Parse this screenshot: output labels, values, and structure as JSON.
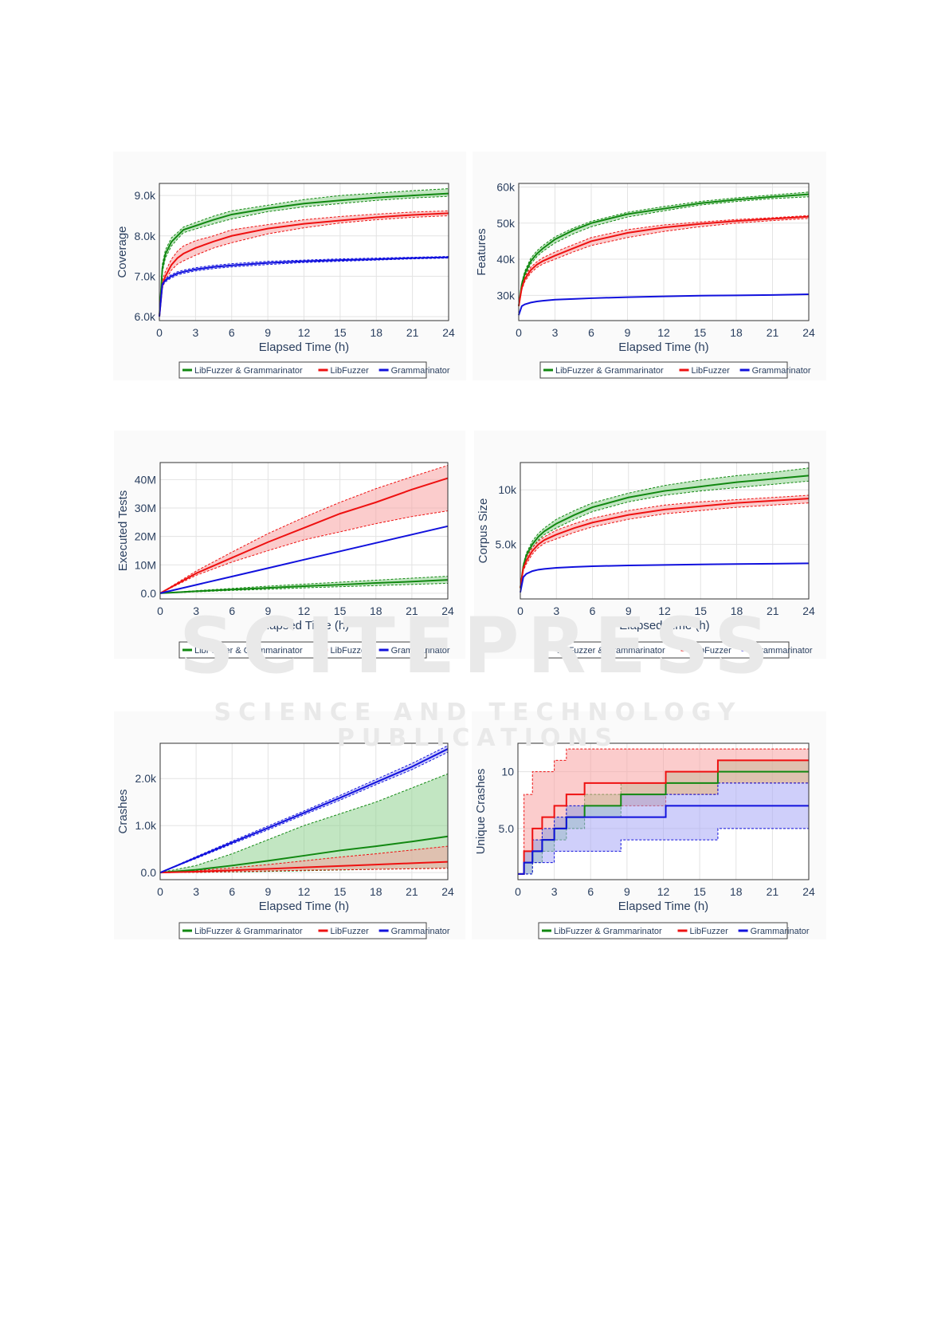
{
  "watermark": {
    "main": "SCITEPRESS",
    "sub": "SCIENCE AND TECHNOLOGY PUBLICATIONS"
  },
  "colors": {
    "green": "#118811",
    "red": "#ee1111",
    "blue": "#1111dd",
    "green_fill": "#8fd18f",
    "red_fill": "#f7a3a3",
    "blue_fill": "#a8a8f5"
  },
  "legend": [
    "LibFuzzer & Grammarinator",
    "LibFuzzer",
    "Grammarinator"
  ],
  "chart_data": [
    {
      "type": "line",
      "xlabel": "Elapsed Time (h)",
      "ylabel": "Coverage",
      "xlim": [
        0,
        24
      ],
      "ylim": [
        5900,
        9300
      ],
      "xticks": [
        0,
        3,
        6,
        9,
        12,
        15,
        18,
        21,
        24
      ],
      "yticks": [
        {
          "v": 6000,
          "l": "6.0k"
        },
        {
          "v": 7000,
          "l": "7.0k"
        },
        {
          "v": 8000,
          "l": "8.0k"
        },
        {
          "v": 9000,
          "l": "9.0k"
        }
      ],
      "grid": true,
      "legend_placement": "bottom",
      "x": [
        0,
        0.25,
        0.5,
        1,
        1.5,
        2,
        3,
        4.5,
        6,
        9,
        12,
        15,
        18,
        21,
        24
      ],
      "series": [
        {
          "name": "LibFuzzer & Grammarinator",
          "color": "green",
          "values": [
            6000,
            7200,
            7550,
            7850,
            8000,
            8150,
            8250,
            8400,
            8530,
            8680,
            8800,
            8880,
            8950,
            9000,
            9050
          ],
          "upper": [
            6000,
            7300,
            7650,
            7950,
            8080,
            8220,
            8330,
            8490,
            8620,
            8760,
            8900,
            9000,
            9060,
            9120,
            9170
          ],
          "lower": [
            6000,
            7100,
            7450,
            7750,
            7920,
            8080,
            8170,
            8300,
            8420,
            8600,
            8720,
            8800,
            8880,
            8940,
            8980
          ]
        },
        {
          "name": "LibFuzzer",
          "color": "red",
          "values": [
            6000,
            6800,
            7000,
            7280,
            7450,
            7560,
            7700,
            7860,
            8000,
            8180,
            8300,
            8380,
            8460,
            8520,
            8560
          ],
          "upper": [
            6000,
            6900,
            7120,
            7420,
            7620,
            7750,
            7880,
            8000,
            8150,
            8280,
            8400,
            8480,
            8540,
            8590,
            8620
          ],
          "lower": [
            6000,
            6700,
            6900,
            7150,
            7300,
            7380,
            7520,
            7700,
            7830,
            8050,
            8200,
            8320,
            8400,
            8460,
            8500
          ]
        },
        {
          "name": "Grammarinator",
          "color": "blue",
          "values": [
            6000,
            6800,
            6900,
            7000,
            7070,
            7110,
            7170,
            7230,
            7270,
            7330,
            7370,
            7400,
            7420,
            7450,
            7470
          ],
          "upper": [
            6000,
            6830,
            6940,
            7040,
            7110,
            7150,
            7210,
            7270,
            7310,
            7370,
            7400,
            7430,
            7450,
            7470,
            7490
          ],
          "lower": [
            6000,
            6770,
            6860,
            6960,
            7030,
            7070,
            7130,
            7190,
            7230,
            7290,
            7340,
            7370,
            7400,
            7430,
            7450
          ]
        }
      ]
    },
    {
      "type": "line",
      "xlabel": "Elapsed Time (h)",
      "ylabel": "Features",
      "xlim": [
        0,
        24
      ],
      "ylim": [
        23000,
        61000
      ],
      "xticks": [
        0,
        3,
        6,
        9,
        12,
        15,
        18,
        21,
        24
      ],
      "yticks": [
        {
          "v": 30000,
          "l": "30k"
        },
        {
          "v": 40000,
          "l": "40k"
        },
        {
          "v": 50000,
          "l": "50k"
        },
        {
          "v": 60000,
          "l": "60k"
        }
      ],
      "grid": true,
      "legend_placement": "bottom",
      "x": [
        0,
        0.25,
        0.5,
        1,
        1.5,
        2,
        3,
        4.5,
        6,
        9,
        12,
        15,
        18,
        21,
        24
      ],
      "series": [
        {
          "name": "LibFuzzer & Grammarinator",
          "color": "green",
          "values": [
            27000,
            33000,
            36000,
            39500,
            41500,
            43000,
            45500,
            48000,
            50000,
            52500,
            54000,
            55500,
            56500,
            57300,
            58000
          ],
          "upper": [
            27000,
            33500,
            36700,
            40300,
            42300,
            43800,
            46200,
            48600,
            50500,
            53000,
            54600,
            56000,
            57000,
            57800,
            58600
          ],
          "lower": [
            27000,
            32500,
            35300,
            38700,
            40700,
            42200,
            44500,
            47000,
            49000,
            51700,
            53400,
            55000,
            56000,
            56800,
            57300
          ]
        },
        {
          "name": "LibFuzzer",
          "color": "red",
          "values": [
            27000,
            32000,
            34500,
            37000,
            38500,
            39500,
            41000,
            43000,
            45000,
            47300,
            48800,
            49800,
            50600,
            51200,
            51800
          ],
          "upper": [
            27000,
            32500,
            35200,
            37800,
            39300,
            40400,
            42000,
            44000,
            46000,
            48200,
            49500,
            50300,
            51000,
            51500,
            52100
          ],
          "lower": [
            27000,
            31500,
            33800,
            36200,
            37700,
            38700,
            40000,
            42000,
            43800,
            46000,
            47700,
            49000,
            50000,
            50700,
            51300
          ]
        },
        {
          "name": "Grammarinator",
          "color": "blue",
          "values": [
            24500,
            27000,
            27500,
            28000,
            28300,
            28500,
            28800,
            29000,
            29200,
            29500,
            29700,
            29900,
            30000,
            30100,
            30300
          ]
        }
      ]
    },
    {
      "type": "line",
      "xlabel": "Elapsed Time (h)",
      "ylabel": "Executed Tests",
      "xlim": [
        0,
        24
      ],
      "ylim": [
        -2000000,
        46000000
      ],
      "xticks": [
        0,
        3,
        6,
        9,
        12,
        15,
        18,
        21,
        24
      ],
      "yticks": [
        {
          "v": 0,
          "l": "0.0"
        },
        {
          "v": 10000000,
          "l": "10M"
        },
        {
          "v": 20000000,
          "l": "20M"
        },
        {
          "v": 30000000,
          "l": "30M"
        },
        {
          "v": 40000000,
          "l": "40M"
        }
      ],
      "grid": true,
      "legend_placement": "bottom",
      "x": [
        0,
        3,
        6,
        9,
        12,
        15,
        18,
        21,
        24
      ],
      "series": [
        {
          "name": "LibFuzzer & Grammarinator",
          "color": "green",
          "values": [
            0,
            700000,
            1300000,
            1900000,
            2500000,
            3000000,
            3600000,
            4100000,
            4700000
          ],
          "upper": [
            0,
            900000,
            1700000,
            2500000,
            3200000,
            3900000,
            4600000,
            5300000,
            6000000
          ],
          "lower": [
            0,
            500000,
            1000000,
            1400000,
            1900000,
            2300000,
            2700000,
            3100000,
            3500000
          ]
        },
        {
          "name": "LibFuzzer",
          "color": "red",
          "values": [
            0,
            7000000,
            12500000,
            18000000,
            23000000,
            28000000,
            32000000,
            36500000,
            40500000
          ],
          "upper": [
            0,
            7800000,
            14500000,
            21000000,
            26700000,
            32000000,
            36800000,
            41000000,
            45000000
          ],
          "lower": [
            0,
            6300000,
            11000000,
            15000000,
            18800000,
            21600000,
            24500000,
            27000000,
            29000000
          ]
        },
        {
          "name": "Grammarinator",
          "color": "blue",
          "values": [
            0,
            2950000,
            5900000,
            8850000,
            11800000,
            14750000,
            17700000,
            20650000,
            23600000
          ]
        }
      ]
    },
    {
      "type": "line",
      "xlabel": "Elapsed Time (h)",
      "ylabel": "Corpus Size",
      "xlim": [
        0,
        24
      ],
      "ylim": [
        0,
        12500
      ],
      "xticks": [
        0,
        3,
        6,
        9,
        12,
        15,
        18,
        21,
        24
      ],
      "yticks": [
        {
          "v": 5000,
          "l": "5.0k"
        },
        {
          "v": 10000,
          "l": "10k"
        }
      ],
      "grid": true,
      "legend_placement": "bottom",
      "x": [
        0,
        0.25,
        0.5,
        1,
        1.5,
        2,
        3,
        4.5,
        6,
        9,
        12,
        15,
        18,
        21,
        24
      ],
      "series": [
        {
          "name": "LibFuzzer & Grammarinator",
          "color": "green",
          "values": [
            1000,
            3000,
            4000,
            5000,
            5700,
            6200,
            6900,
            7700,
            8400,
            9300,
            9900,
            10300,
            10700,
            11000,
            11300
          ],
          "upper": [
            1000,
            3200,
            4200,
            5300,
            6000,
            6500,
            7300,
            8100,
            8800,
            9700,
            10400,
            10900,
            11300,
            11600,
            12000
          ],
          "lower": [
            1000,
            2800,
            3800,
            4700,
            5400,
            5900,
            6500,
            7300,
            8000,
            8900,
            9500,
            9900,
            10200,
            10500,
            10800
          ]
        },
        {
          "name": "LibFuzzer",
          "color": "red",
          "values": [
            1000,
            2800,
            3500,
            4400,
            5000,
            5400,
            5900,
            6500,
            7000,
            7700,
            8200,
            8500,
            8800,
            9000,
            9200
          ],
          "upper": [
            1000,
            3000,
            3800,
            4700,
            5300,
            5700,
            6300,
            6900,
            7400,
            8100,
            8600,
            8900,
            9100,
            9300,
            9500
          ],
          "lower": [
            1000,
            2600,
            3200,
            4100,
            4700,
            5100,
            5500,
            6100,
            6600,
            7300,
            7800,
            8100,
            8400,
            8600,
            8800
          ]
        },
        {
          "name": "Grammarinator",
          "color": "blue",
          "values": [
            600,
            2000,
            2300,
            2550,
            2680,
            2750,
            2850,
            2930,
            3000,
            3070,
            3120,
            3160,
            3200,
            3230,
            3260
          ]
        }
      ]
    },
    {
      "type": "line",
      "xlabel": "Elapsed Time (h)",
      "ylabel": "Crashes",
      "xlim": [
        0,
        24
      ],
      "ylim": [
        -150,
        2750
      ],
      "xticks": [
        0,
        3,
        6,
        9,
        12,
        15,
        18,
        21,
        24
      ],
      "yticks": [
        {
          "v": 0,
          "l": "0.0"
        },
        {
          "v": 1000,
          "l": "1.0k"
        },
        {
          "v": 2000,
          "l": "2.0k"
        }
      ],
      "grid": true,
      "legend_placement": "bottom",
      "x": [
        0,
        3,
        6,
        9,
        12,
        15,
        18,
        21,
        24
      ],
      "series": [
        {
          "name": "LibFuzzer & Grammarinator",
          "color": "green",
          "values": [
            0,
            60,
            150,
            250,
            360,
            470,
            560,
            660,
            770
          ],
          "upper": [
            0,
            150,
            400,
            700,
            1000,
            1250,
            1500,
            1800,
            2100
          ],
          "lower": [
            0,
            5,
            15,
            25,
            40,
            55,
            70,
            85,
            100
          ]
        },
        {
          "name": "LibFuzzer",
          "color": "red",
          "values": [
            0,
            20,
            50,
            80,
            110,
            140,
            170,
            200,
            230
          ],
          "upper": [
            0,
            40,
            100,
            170,
            250,
            330,
            400,
            480,
            560
          ],
          "lower": [
            0,
            5,
            20,
            35,
            50,
            60,
            70,
            80,
            90
          ]
        },
        {
          "name": "Grammarinator",
          "color": "blue",
          "values": [
            0,
            320,
            640,
            950,
            1270,
            1590,
            1920,
            2250,
            2630
          ],
          "upper": [
            0,
            340,
            670,
            990,
            1310,
            1640,
            1980,
            2320,
            2700
          ],
          "lower": [
            0,
            300,
            610,
            910,
            1230,
            1540,
            1870,
            2190,
            2560
          ]
        }
      ]
    },
    {
      "type": "line",
      "step": true,
      "xlabel": "Elapsed Time (h)",
      "ylabel": "Unique Crashes",
      "xlim": [
        0,
        24
      ],
      "ylim": [
        0.5,
        12.5
      ],
      "xticks": [
        0,
        3,
        6,
        9,
        12,
        15,
        18,
        21,
        24
      ],
      "yticks": [
        {
          "v": 5,
          "l": "5.0"
        },
        {
          "v": 10,
          "l": "10"
        }
      ],
      "grid": true,
      "legend_placement": "bottom",
      "x": [
        0,
        0.5,
        1.2,
        2,
        3,
        4,
        5.5,
        8.5,
        12.2,
        16.5,
        24
      ],
      "series": [
        {
          "name": "LibFuzzer & Grammarinator",
          "color": "green",
          "values": [
            1,
            2,
            3,
            4,
            5,
            6,
            7,
            8,
            9,
            10,
            10
          ],
          "upper": [
            1,
            3,
            4,
            5,
            6,
            7,
            8,
            9,
            10,
            11,
            11
          ],
          "lower": [
            1,
            1,
            2,
            3,
            4,
            5,
            6,
            7,
            8,
            9,
            9
          ]
        },
        {
          "name": "LibFuzzer",
          "color": "red",
          "values": [
            1,
            3,
            5,
            6,
            7,
            8,
            9,
            9,
            10,
            11,
            11
          ],
          "upper": [
            1,
            8,
            10,
            10,
            11,
            12,
            12,
            12,
            12,
            12,
            12
          ],
          "lower": [
            1,
            2,
            3,
            4,
            5,
            6,
            7,
            7,
            8,
            9,
            9
          ]
        },
        {
          "name": "Grammarinator",
          "color": "blue",
          "values": [
            1,
            2,
            3,
            4,
            5,
            6,
            6,
            6,
            7,
            7,
            7
          ],
          "upper": [
            1,
            3,
            4,
            5,
            6,
            7,
            7,
            8,
            8,
            9,
            9
          ],
          "lower": [
            1,
            1,
            2,
            2,
            3,
            3,
            3,
            4,
            4,
            5,
            5
          ]
        }
      ]
    }
  ]
}
